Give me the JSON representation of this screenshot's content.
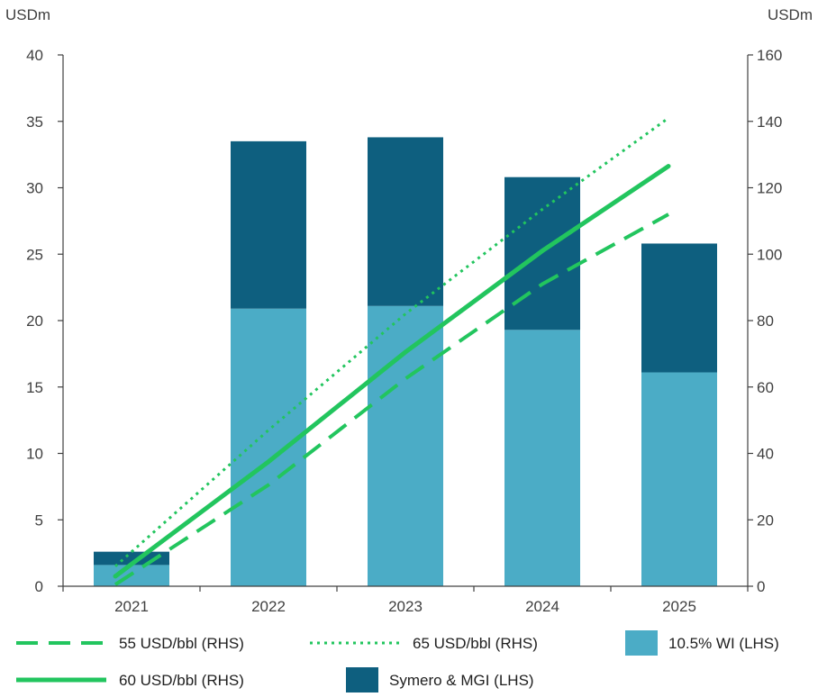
{
  "chart_data": {
    "type": "bar",
    "stacked": true,
    "categories": [
      "2021",
      "2022",
      "2023",
      "2024",
      "2025"
    ],
    "left_axis": {
      "unit": "USDm",
      "range": [
        0,
        40
      ],
      "ticks": [
        "0",
        "5",
        "10",
        "15",
        "20",
        "25",
        "30",
        "35",
        "40"
      ]
    },
    "right_axis": {
      "unit": "USDm",
      "range": [
        0,
        160
      ],
      "ticks": [
        "0",
        "20",
        "40",
        "60",
        "80",
        "100",
        "120",
        "140",
        "160"
      ]
    },
    "grid": false,
    "legend_position": "bottom",
    "bar_series": [
      {
        "name": "10.5% WI (LHS)",
        "axis": "left",
        "color": "#4bacc6",
        "values": [
          1.6,
          20.9,
          21.1,
          19.3,
          16.1
        ]
      },
      {
        "name": "Symero & MGI (LHS)",
        "axis": "left",
        "color": "#0e5f7f",
        "values": [
          1.0,
          12.6,
          12.7,
          11.5,
          9.7
        ]
      }
    ],
    "line_series": [
      {
        "name": "55 USD/bbl (RHS)",
        "axis": "right",
        "color": "#22c55e",
        "style": "dashed",
        "values": [
          0.5,
          30.5,
          62.5,
          91.0,
          112.0
        ]
      },
      {
        "name": "60 USD/bbl (RHS)",
        "axis": "right",
        "color": "#22c55e",
        "style": "solid",
        "values": [
          3.0,
          37.5,
          70.5,
          101.0,
          126.5
        ]
      },
      {
        "name": "65 USD/bbl (RHS)",
        "axis": "right",
        "color": "#22c55e",
        "style": "dotted",
        "values": [
          6.0,
          47.0,
          82.0,
          113.5,
          141.0
        ]
      }
    ],
    "legend": [
      {
        "name": "55 USD/bbl (RHS)",
        "kind": "line",
        "style": "dashed"
      },
      {
        "name": "65 USD/bbl (RHS)",
        "kind": "line",
        "style": "dotted"
      },
      {
        "name": "10.5% WI (LHS)",
        "kind": "bar",
        "color": "#4bacc6"
      },
      {
        "name": "60 USD/bbl (RHS)",
        "kind": "line",
        "style": "solid"
      },
      {
        "name": "Symero & MGI (LHS)",
        "kind": "bar",
        "color": "#0e5f7f"
      }
    ]
  }
}
